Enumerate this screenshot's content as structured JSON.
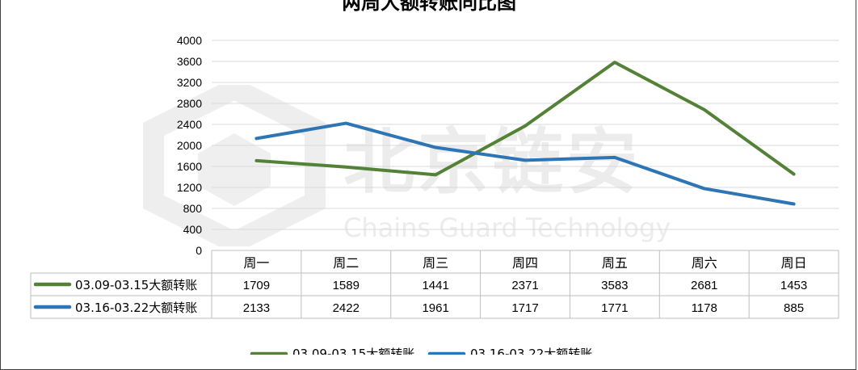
{
  "chart_data": {
    "type": "line",
    "title": "两周大额转账同比图",
    "categories": [
      "周一",
      "周二",
      "周三",
      "周四",
      "周五",
      "周六",
      "周日"
    ],
    "series": [
      {
        "name": "03.09-03.15大额转账",
        "color": "#538135",
        "values": [
          1709,
          1589,
          1441,
          2371,
          3583,
          2681,
          1453
        ]
      },
      {
        "name": "03.16-03.22大额转账",
        "color": "#2e75b6",
        "values": [
          2133,
          2422,
          1961,
          1717,
          1771,
          1178,
          885
        ]
      }
    ],
    "ylim": [
      0,
      4000
    ],
    "yticks": [
      0,
      400,
      800,
      1200,
      1600,
      2000,
      2400,
      2800,
      3200,
      3600,
      4000
    ],
    "grid": true,
    "data_table": true,
    "legend_position": "bottom"
  },
  "watermark": {
    "text_cn": "北京链安",
    "text_en": "Chains Guard Technology"
  }
}
